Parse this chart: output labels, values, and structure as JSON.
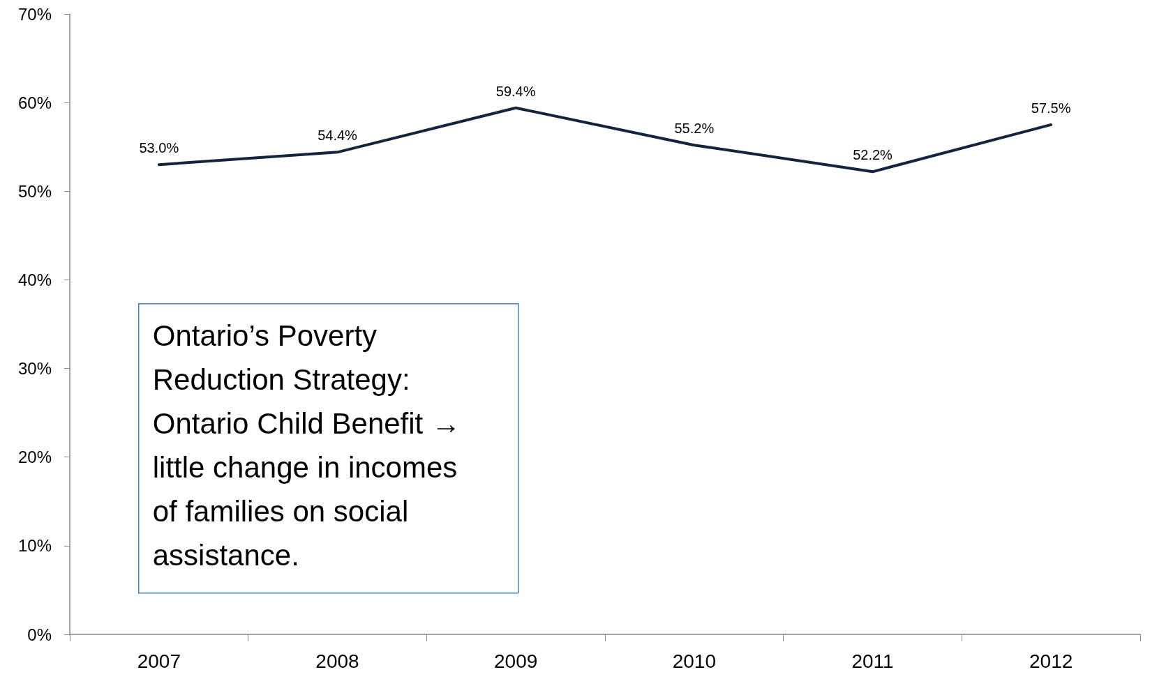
{
  "chart_data": {
    "type": "line",
    "categories": [
      "2007",
      "2008",
      "2009",
      "2010",
      "2011",
      "2012"
    ],
    "series": [
      {
        "color": "#14243c",
        "values": [
          53.0,
          54.4,
          59.4,
          55.2,
          52.2,
          57.5
        ],
        "value_labels": [
          "53.0%",
          "54.4%",
          "59.4%",
          "55.2%",
          "52.2%",
          "57.5%"
        ]
      }
    ],
    "ylim": [
      0,
      70
    ],
    "yticks": [
      {
        "value": 0,
        "label": "0%"
      },
      {
        "value": 10,
        "label": "10%"
      },
      {
        "value": 20,
        "label": "20%"
      },
      {
        "value": 30,
        "label": "30%"
      },
      {
        "value": 40,
        "label": "40%"
      },
      {
        "value": 50,
        "label": "50%"
      },
      {
        "value": 60,
        "label": "60%"
      },
      {
        "value": 70,
        "label": "70%"
      }
    ],
    "annotations": [
      "Ontario’s Poverty Reduction Strategy: Ontario Child Benefit → little change in incomes of families on social assistance."
    ],
    "grid": false,
    "marker": "none",
    "line_style": "solid"
  }
}
